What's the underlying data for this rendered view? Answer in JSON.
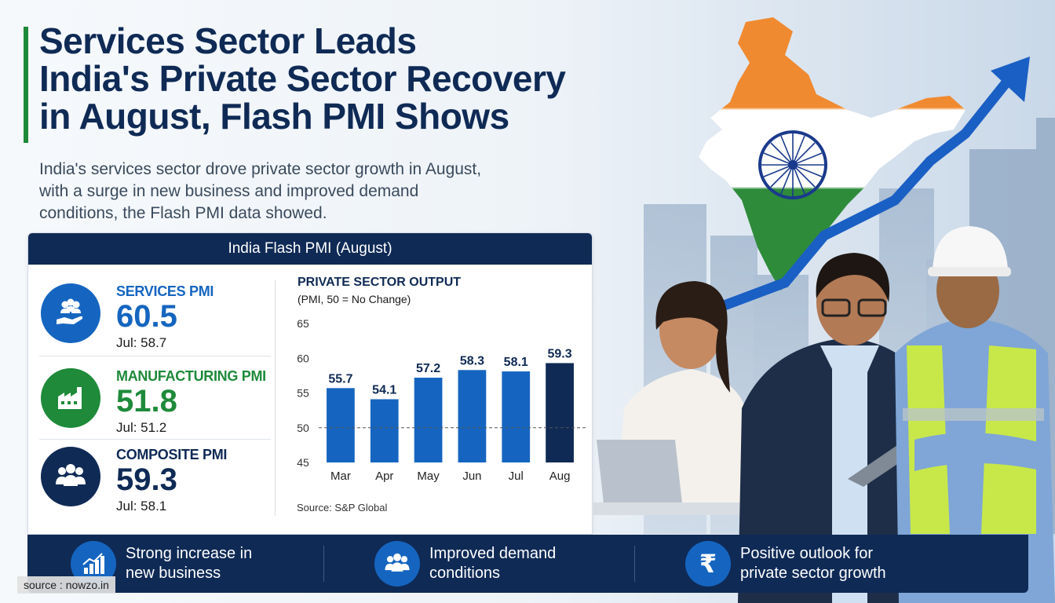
{
  "headline": {
    "line1": "Services Sector Leads",
    "line2": "India's Private Sector Recovery",
    "line3": "in August, Flash PMI Shows"
  },
  "subtitle": {
    "line1": "India's services sector drove private sector growth in August,",
    "line2": "with a surge in new business and improved demand",
    "line3": "conditions, the Flash PMI data showed."
  },
  "card": {
    "title": "India Flash PMI (August)"
  },
  "kpis": [
    {
      "label": "SERVICES PMI",
      "value": "60.5",
      "previous": "Jul: 58.7",
      "color": "#1565c0",
      "icon": "people-hand-icon"
    },
    {
      "label": "MANUFACTURING PMI",
      "value": "51.8",
      "previous": "Jul: 51.2",
      "color": "#1e8a3a",
      "icon": "factory-icon"
    },
    {
      "label": "COMPOSITE PMI",
      "value": "59.3",
      "previous": "Jul: 58.1",
      "color": "#0f2a55",
      "icon": "group-icon"
    }
  ],
  "chart_data": {
    "type": "bar",
    "title": "PRIVATE SECTOR OUTPUT",
    "subtitle": "(PMI, 50 = No Change)",
    "categories": [
      "Mar",
      "Apr",
      "May",
      "Jun",
      "Jul",
      "Aug"
    ],
    "values": [
      55.7,
      54.1,
      57.2,
      58.3,
      58.1,
      59.3
    ],
    "data_labels": [
      "55.7",
      "54.1",
      "57.2",
      "58.3",
      "58.1",
      "59.3"
    ],
    "ylim": [
      45,
      65
    ],
    "yticks": [
      45,
      50,
      55,
      60,
      65
    ],
    "reference_line": 50,
    "bar_color": "#1565c0",
    "highlight_color": "#0f2a55",
    "highlight_index": 5,
    "grid": false,
    "source": "Source: S&P Global"
  },
  "features": [
    {
      "line1": "Strong increase in",
      "line2": "new business",
      "icon": "bar-chart-up-icon"
    },
    {
      "line1": "Improved demand",
      "line2": "conditions",
      "icon": "group-icon"
    },
    {
      "line1": "Positive outlook for",
      "line2": "private sector growth",
      "icon": "rupee-icon"
    }
  ],
  "source_tag": "source : nowzo.in",
  "colors": {
    "navy": "#0f2a55",
    "green": "#1e8a3a",
    "blue": "#1565c0",
    "saffron": "#f08a30",
    "chakra": "#1a3a8c"
  }
}
